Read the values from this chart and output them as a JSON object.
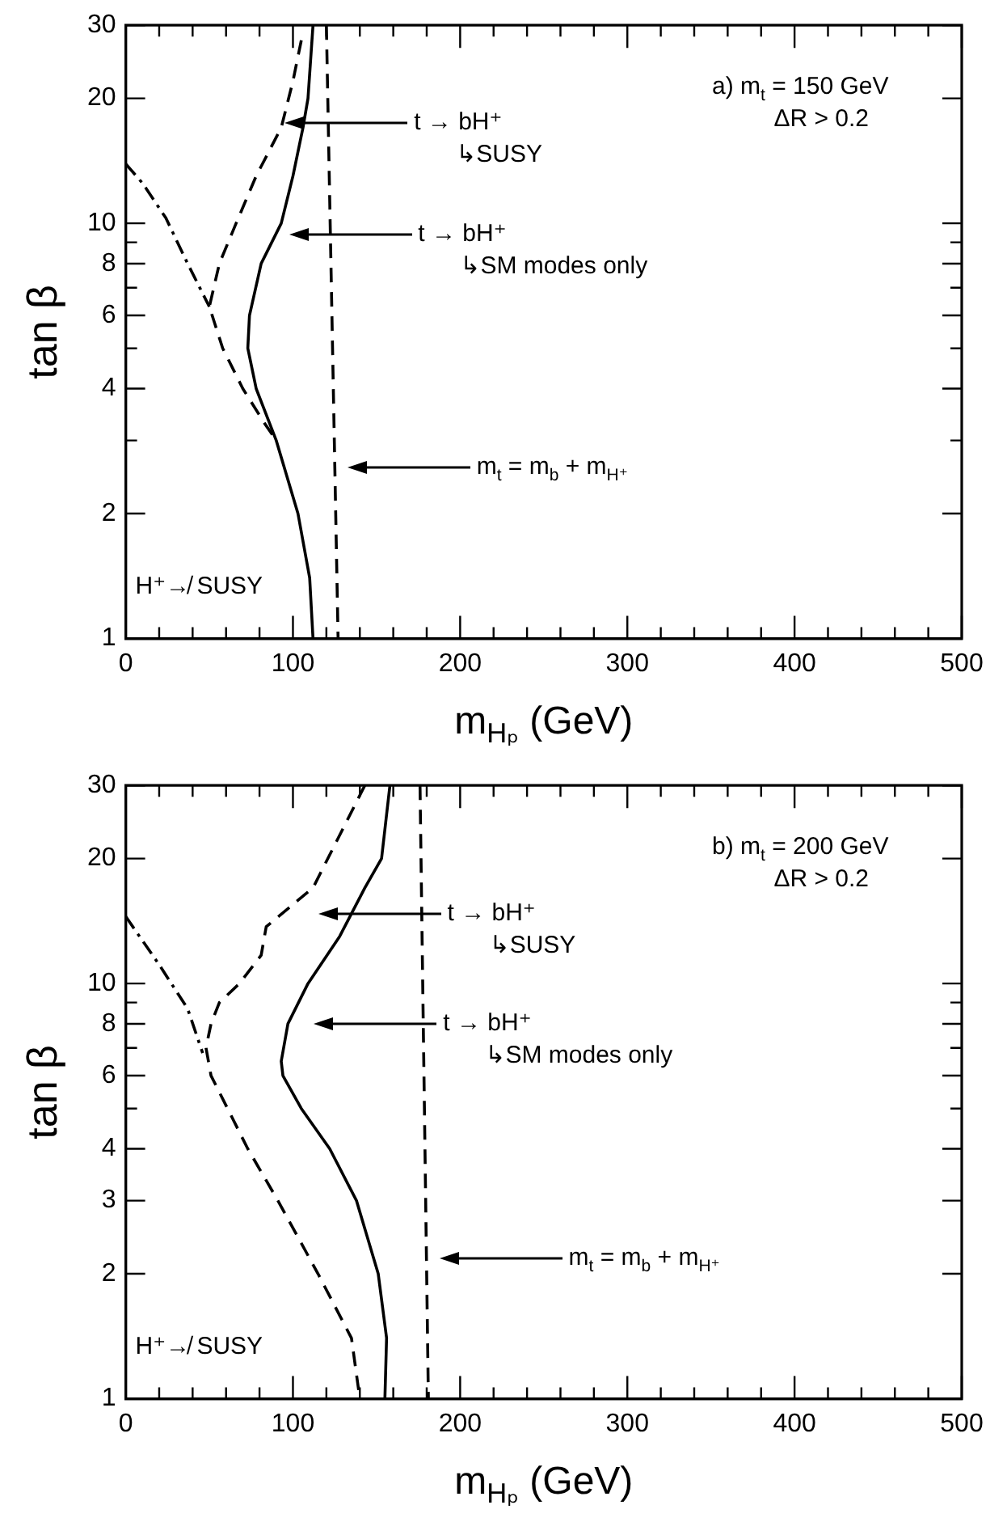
{
  "chart_data": [
    {
      "type": "line",
      "xlabel": "m$_{Hₚ}$ (GeV)",
      "ylabel": "tan β",
      "log": "y",
      "marker": "none",
      "xlim": [
        0,
        500
      ],
      "xticks": [
        0,
        {
          "value": 20,
          "label": null
        },
        {
          "value": 40,
          "label": null
        },
        {
          "value": 60,
          "label": null
        },
        {
          "value": 80,
          "label": null
        },
        100,
        {
          "value": 120,
          "label": null
        },
        {
          "value": 140,
          "label": null
        },
        {
          "value": 160,
          "label": null
        },
        {
          "value": 180,
          "label": null
        },
        200,
        {
          "value": 220,
          "label": null
        },
        {
          "value": 240,
          "label": null
        },
        {
          "value": 260,
          "label": null
        },
        {
          "value": 280,
          "label": null
        },
        300,
        {
          "value": 320,
          "label": null
        },
        {
          "value": 340,
          "label": null
        },
        {
          "value": 360,
          "label": null
        },
        {
          "value": 380,
          "label": null
        },
        400,
        {
          "value": 420,
          "label": null
        },
        {
          "value": 440,
          "label": null
        },
        {
          "value": 460,
          "label": null
        },
        {
          "value": 480,
          "label": null
        },
        500
      ],
      "ylim": [
        1,
        30
      ],
      "yticks": [
        1,
        2,
        {
          "value": 3,
          "label": null
        },
        4,
        {
          "value": 5,
          "label": null
        },
        6,
        {
          "value": 7,
          "label": null
        },
        8,
        {
          "value": 9,
          "label": null
        },
        10,
        20,
        30
      ],
      "series": [
        {
          "color": "#000000",
          "line_style": "solid",
          "x": [
            112,
            109,
            106,
            100,
            93,
            81,
            74,
            73,
            78,
            90,
            103,
            110,
            112
          ],
          "values": [
            30,
            20,
            17,
            13,
            10,
            8,
            6,
            5,
            4,
            3,
            2,
            1.4,
            1
          ]
        },
        {
          "color": "#000000",
          "line_style": "dashed",
          "x": [
            105,
            100,
            93,
            78,
            66,
            56,
            50,
            58,
            70,
            83,
            90
          ],
          "values": [
            27.6,
            22,
            17,
            13,
            10,
            8,
            6.3,
            5,
            4,
            3.3,
            3
          ]
        },
        {
          "color": "#000000",
          "line_style": "dashdot",
          "x": [
            0,
            10,
            24,
            37,
            50
          ],
          "values": [
            13.9,
            12.5,
            10.3,
            8,
            6.3
          ]
        },
        {
          "color": "#000000",
          "line_style": "dashed",
          "x": [
            120,
            127
          ],
          "values": [
            30,
            1
          ]
        }
      ],
      "annotations": [
        "a) m$_{t}$ = 150 GeV\nΔR > 0.2",
        "H⁺↛ SUSY",
        "t → bH⁺\n↳SUSY",
        "t → bH⁺\n↳SM modes only",
        "m$_{t}$ = m$_{b}$ + m$_{H⁺}$"
      ]
    },
    {
      "type": "line",
      "xlabel": "m$_{Hₚ}$ (GeV)",
      "ylabel": "tan β",
      "log": "y",
      "marker": "none",
      "xlim": [
        0,
        500
      ],
      "xticks": [
        0,
        {
          "value": 20,
          "label": null
        },
        {
          "value": 40,
          "label": null
        },
        {
          "value": 60,
          "label": null
        },
        {
          "value": 80,
          "label": null
        },
        100,
        {
          "value": 120,
          "label": null
        },
        {
          "value": 140,
          "label": null
        },
        {
          "value": 160,
          "label": null
        },
        {
          "value": 180,
          "label": null
        },
        200,
        {
          "value": 220,
          "label": null
        },
        {
          "value": 240,
          "label": null
        },
        {
          "value": 260,
          "label": null
        },
        {
          "value": 280,
          "label": null
        },
        300,
        {
          "value": 320,
          "label": null
        },
        {
          "value": 340,
          "label": null
        },
        {
          "value": 360,
          "label": null
        },
        {
          "value": 380,
          "label": null
        },
        400,
        {
          "value": 420,
          "label": null
        },
        {
          "value": 440,
          "label": null
        },
        {
          "value": 460,
          "label": null
        },
        {
          "value": 480,
          "label": null
        },
        500
      ],
      "ylim": [
        1,
        30
      ],
      "yticks": [
        1,
        2,
        3,
        4,
        {
          "value": 5,
          "label": null
        },
        6,
        {
          "value": 7,
          "label": null
        },
        8,
        {
          "value": 9,
          "label": null
        },
        10,
        20,
        30
      ],
      "series": [
        {
          "color": "#000000",
          "line_style": "solid",
          "x": [
            158,
            153,
            143,
            128,
            109,
            97,
            93,
            94,
            105,
            122,
            138,
            151,
            156,
            155
          ],
          "values": [
            30,
            20,
            17,
            13,
            10,
            8,
            6.5,
            6,
            5,
            4,
            3,
            2,
            1.4,
            1
          ]
        },
        {
          "color": "#000000",
          "line_style": "dashed",
          "x": [
            143,
            112,
            84,
            81,
            68,
            56,
            51,
            48,
            51,
            73,
            91,
            115,
            135,
            140
          ],
          "values": [
            30,
            17,
            13.7,
            11.7,
            10,
            9,
            8,
            7,
            6,
            4,
            3,
            2,
            1.4,
            1
          ]
        },
        {
          "color": "#000000",
          "line_style": "dashdot",
          "x": [
            0,
            20,
            37,
            46
          ],
          "values": [
            14.5,
            11.1,
            8.7,
            6.8
          ]
        },
        {
          "color": "#000000",
          "line_style": "dashed",
          "x": [
            176,
            181
          ],
          "values": [
            30,
            1
          ]
        }
      ],
      "annotations": [
        "b) m$_{t}$ = 200 GeV\nΔR > 0.2",
        "H⁺↛ SUSY",
        "t → bH⁺\n↳SUSY",
        "t → bH⁺\n↳SM modes only",
        "m$_{t}$ = m$_{b}$ + m$_{H⁺}$"
      ]
    }
  ]
}
